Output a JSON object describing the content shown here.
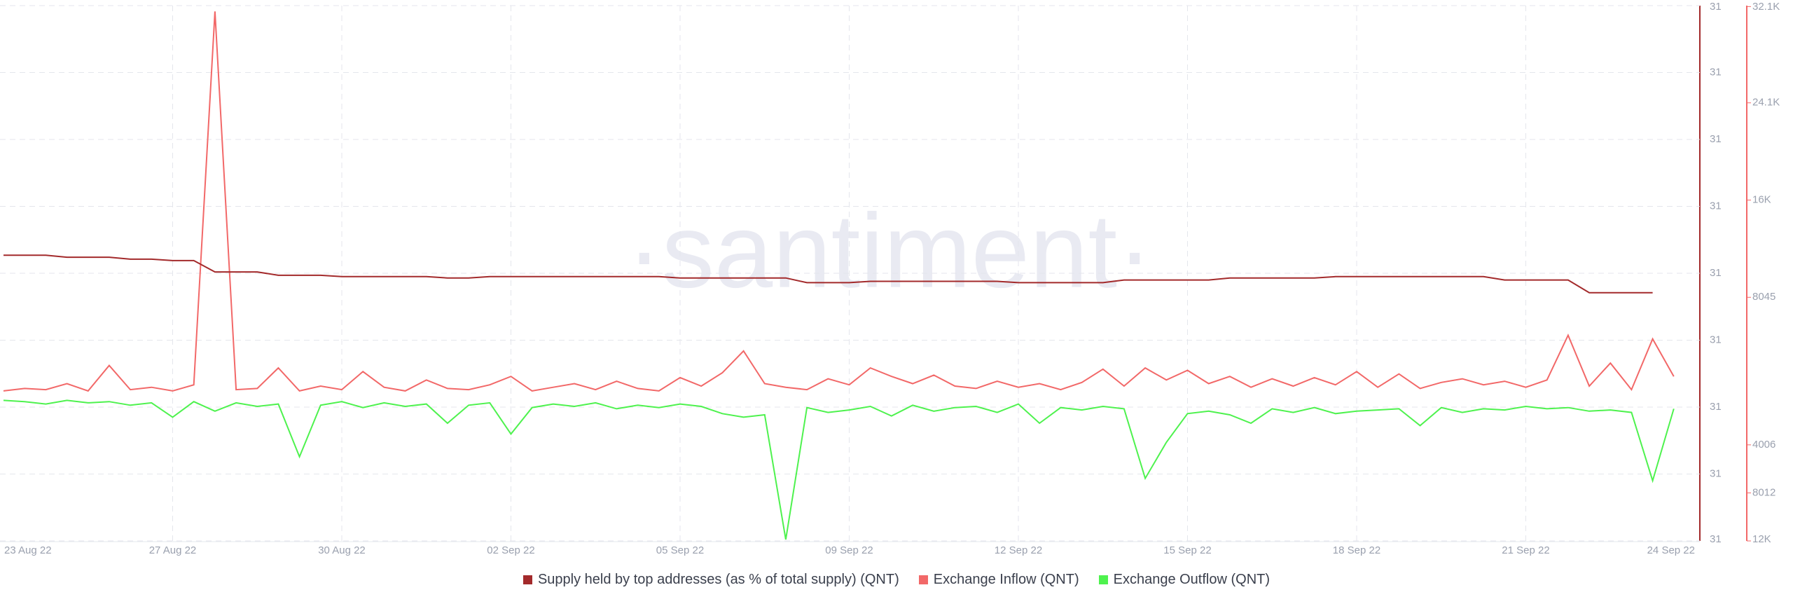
{
  "chart_data": {
    "type": "line",
    "watermark": "·santiment·",
    "categories": [
      "23 Aug 22",
      null,
      null,
      null,
      null,
      null,
      null,
      null,
      "27 Aug 22",
      null,
      null,
      null,
      null,
      null,
      null,
      null,
      "30 Aug 22",
      null,
      null,
      null,
      null,
      null,
      null,
      null,
      "02 Sep 22",
      null,
      null,
      null,
      null,
      null,
      null,
      null,
      "05 Sep 22",
      null,
      null,
      null,
      null,
      null,
      null,
      null,
      "09 Sep 22",
      null,
      null,
      null,
      null,
      null,
      null,
      null,
      "12 Sep 22",
      null,
      null,
      null,
      null,
      null,
      null,
      null,
      "15 Sep 22",
      null,
      null,
      null,
      null,
      null,
      null,
      null,
      "18 Sep 22",
      null,
      null,
      null,
      null,
      null,
      null,
      null,
      "21 Sep 22",
      null,
      null,
      null,
      null,
      null,
      null,
      null,
      "24 Sep 22"
    ],
    "series": [
      {
        "name": "Supply held by top addresses (as % of total supply) (QNT)",
        "color": "#a32a2b",
        "axis": "y",
        "values": [
          31.0027,
          31.0027,
          31.0027,
          31.0024,
          31.0024,
          31.0024,
          31.0021,
          31.0021,
          31.0019,
          31.0019,
          31.0002,
          31.0002,
          31.0002,
          30.9997,
          30.9997,
          30.9997,
          30.9995,
          30.9995,
          30.9995,
          30.9995,
          30.9995,
          30.9993,
          30.9993,
          30.9995,
          30.9995,
          30.9995,
          30.9995,
          30.9995,
          30.9995,
          30.9995,
          30.9995,
          30.9995,
          30.9993,
          30.9993,
          30.9993,
          30.9993,
          30.9993,
          30.9993,
          30.9986,
          30.9986,
          30.9986,
          30.9988,
          30.9988,
          30.9988,
          30.9988,
          30.9988,
          30.9988,
          30.9988,
          30.9986,
          30.9986,
          30.9986,
          30.9986,
          30.9986,
          30.999,
          30.999,
          30.999,
          30.999,
          30.999,
          30.9993,
          30.9993,
          30.9993,
          30.9993,
          30.9993,
          30.9995,
          30.9995,
          30.9995,
          30.9995,
          30.9995,
          30.9995,
          30.9995,
          30.9995,
          30.999,
          30.999,
          30.999,
          30.999,
          30.9971,
          30.9971,
          30.9971,
          30.9971,
          null,
          null
        ]
      },
      {
        "name": "Exchange Inflow (QNT)",
        "color": "#f26868",
        "axis": "y2",
        "values": [
          300,
          500,
          400,
          900,
          300,
          2400,
          400,
          600,
          300,
          800,
          31700,
          400,
          500,
          2200,
          300,
          700,
          400,
          1900,
          600,
          300,
          1200,
          500,
          400,
          800,
          1500,
          300,
          600,
          900,
          400,
          1100,
          500,
          300,
          1400,
          700,
          1800,
          3600,
          900,
          600,
          400,
          1300,
          800,
          2200,
          1500,
          900,
          1600,
          700,
          500,
          1100,
          600,
          900,
          400,
          1000,
          2100,
          700,
          2200,
          1200,
          2000,
          900,
          1500,
          600,
          1300,
          700,
          1400,
          800,
          1900,
          600,
          1700,
          500,
          1000,
          1300,
          800,
          1100,
          600,
          1200,
          4900,
          700,
          2600,
          400,
          4600,
          1500,
          null
        ]
      },
      {
        "name": "Exchange Outflow (QNT)",
        "color": "#4ef24e",
        "axis": "y3",
        "values": [
          300,
          400,
          600,
          300,
          500,
          400,
          700,
          500,
          1700,
          400,
          1200,
          500,
          800,
          600,
          5000,
          700,
          400,
          900,
          500,
          800,
          600,
          2200,
          700,
          500,
          3100,
          900,
          600,
          800,
          500,
          1000,
          700,
          900,
          600,
          800,
          1400,
          1700,
          1500,
          11900,
          900,
          1300,
          1100,
          800,
          1600,
          700,
          1200,
          900,
          800,
          1300,
          600,
          2200,
          900,
          1100,
          800,
          1000,
          6800,
          3800,
          1400,
          1200,
          1500,
          2200,
          1000,
          1300,
          900,
          1400,
          1200,
          1100,
          1000,
          2400,
          900,
          1300,
          1000,
          1100,
          800,
          1000,
          900,
          1200,
          1100,
          1300,
          7000,
          1000,
          null
        ]
      }
    ],
    "ylim": [
      30.96,
      31.04
    ],
    "yticks": [
      {
        "value": 30.96,
        "label": "31"
      },
      {
        "value": 30.97,
        "label": "31"
      },
      {
        "value": 30.98,
        "label": "31"
      },
      {
        "value": 30.99,
        "label": "31"
      },
      {
        "value": 31.0,
        "label": "31"
      },
      {
        "value": 31.01,
        "label": "31"
      },
      {
        "value": 31.02,
        "label": "31"
      },
      {
        "value": 31.03,
        "label": "31"
      },
      {
        "value": 31.04,
        "label": "31"
      }
    ],
    "y2lim": [
      -12115,
      32180
    ],
    "y2ticks": [
      8045,
      {
        "value": 16090,
        "label": "16K"
      },
      {
        "value": 24135,
        "label": "24.1K"
      },
      {
        "value": 32100,
        "label": "32.1K"
      }
    ],
    "y3lim": [
      12018,
      -32620
    ],
    "y3ticks": [
      4006,
      8012,
      {
        "value": 12018,
        "label": "12K"
      }
    ],
    "grid": true
  }
}
